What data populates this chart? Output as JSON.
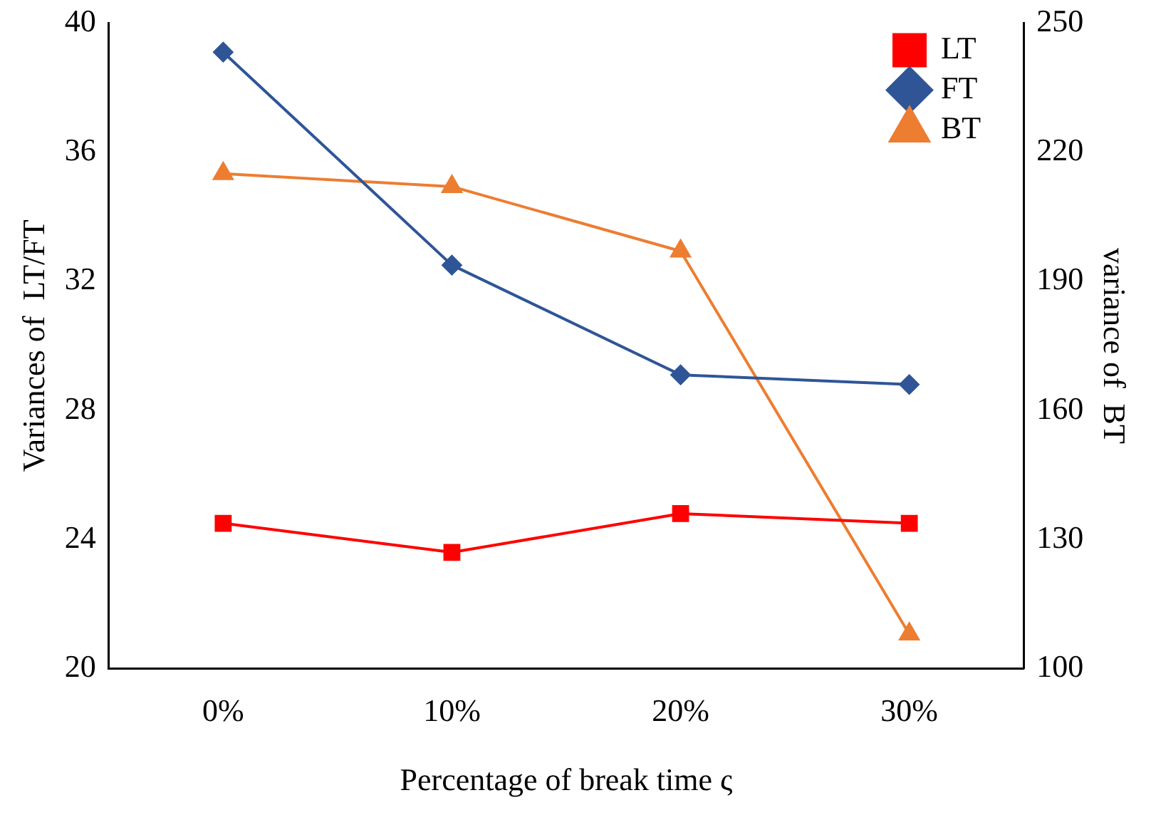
{
  "chart_data": {
    "type": "line",
    "xlabel": "Percentage of break time ς",
    "ylabel": "Variances of  LT/FT",
    "y2label": "variance of  BT",
    "categories": [
      "0%",
      "10%",
      "20%",
      "30%"
    ],
    "series": [
      {
        "name": "LT",
        "color": "#ff0000",
        "marker": "square",
        "values": [
          24.5,
          23.6,
          24.8,
          24.5
        ]
      },
      {
        "name": "FT",
        "color": "#2f5597",
        "marker": "diamond",
        "values": [
          39.1,
          32.5,
          29.1,
          28.8
        ]
      },
      {
        "name": "BT",
        "color": "#ed7d31",
        "marker": "triangle",
        "axis": "y2",
        "values": [
          215,
          212,
          197,
          108
        ]
      }
    ],
    "ylim": [
      20,
      40
    ],
    "yticks": [
      20,
      24,
      28,
      32,
      36,
      40
    ],
    "y2lim": [
      100,
      250
    ],
    "y2ticks": [
      100,
      130,
      160,
      190,
      220,
      250
    ],
    "grid": false,
    "legend": "top right",
    "line_style": "solid"
  }
}
